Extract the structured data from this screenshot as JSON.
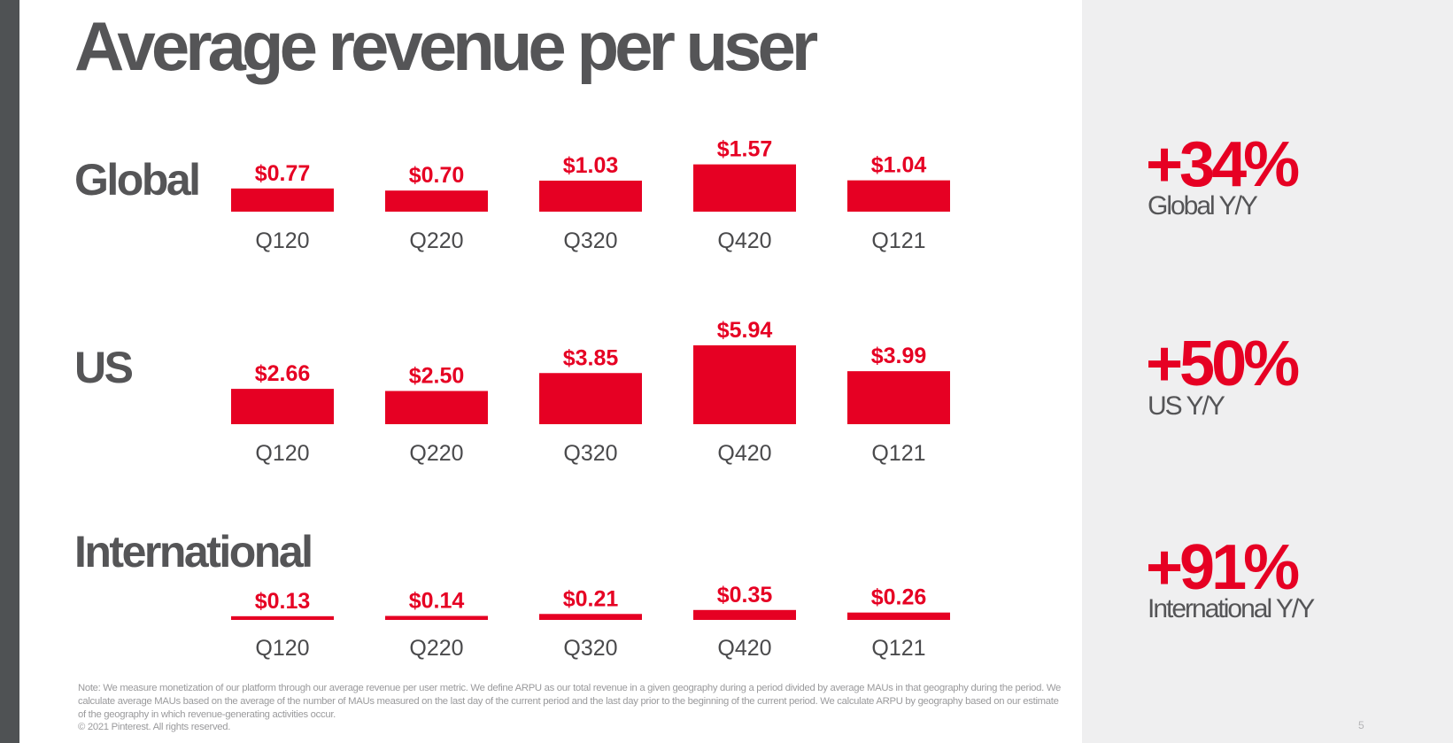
{
  "title": "Average revenue per user",
  "chart_data": [
    {
      "type": "bar",
      "title": "Global",
      "categories": [
        "Q120",
        "Q220",
        "Q320",
        "Q420",
        "Q121"
      ],
      "values": [
        0.77,
        0.7,
        1.03,
        1.57,
        1.04
      ],
      "value_labels": [
        "$0.77",
        "$0.70",
        "$1.03",
        "$1.57",
        "$1.04"
      ],
      "color": "#e60023"
    },
    {
      "type": "bar",
      "title": "US",
      "categories": [
        "Q120",
        "Q220",
        "Q320",
        "Q420",
        "Q121"
      ],
      "values": [
        2.66,
        2.5,
        3.85,
        5.94,
        3.99
      ],
      "value_labels": [
        "$2.66",
        "$2.50",
        "$3.85",
        "$5.94",
        "$3.99"
      ],
      "color": "#e60023"
    },
    {
      "type": "bar",
      "title": "International",
      "categories": [
        "Q120",
        "Q220",
        "Q320",
        "Q420",
        "Q121"
      ],
      "values": [
        0.13,
        0.14,
        0.21,
        0.35,
        0.26
      ],
      "value_labels": [
        "$0.13",
        "$0.14",
        "$0.21",
        "$0.35",
        "$0.26"
      ],
      "color": "#e60023"
    }
  ],
  "stats": [
    {
      "value": "+34%",
      "label": "Global Y/Y"
    },
    {
      "value": "+50%",
      "label": "US Y/Y"
    },
    {
      "value": "+91%",
      "label": "International Y/Y"
    }
  ],
  "note": "Note: We measure monetization of our platform through our average revenue per user metric. We define ARPU as our total revenue in a given geography during a period divided by average MAUs in that geography during the period. We calculate average MAUs based on the average of the number of MAUs measured on the last day of the current period and the last day prior to the beginning of the current period. We calculate ARPU by geography based on our estimate of the geography in which revenue-generating activities occur.",
  "copyright": "© 2021 Pinterest. All rights reserved.",
  "page_number": "5",
  "colors": {
    "accent": "#e60023",
    "text": "#555557",
    "panel": "#efeff0"
  }
}
